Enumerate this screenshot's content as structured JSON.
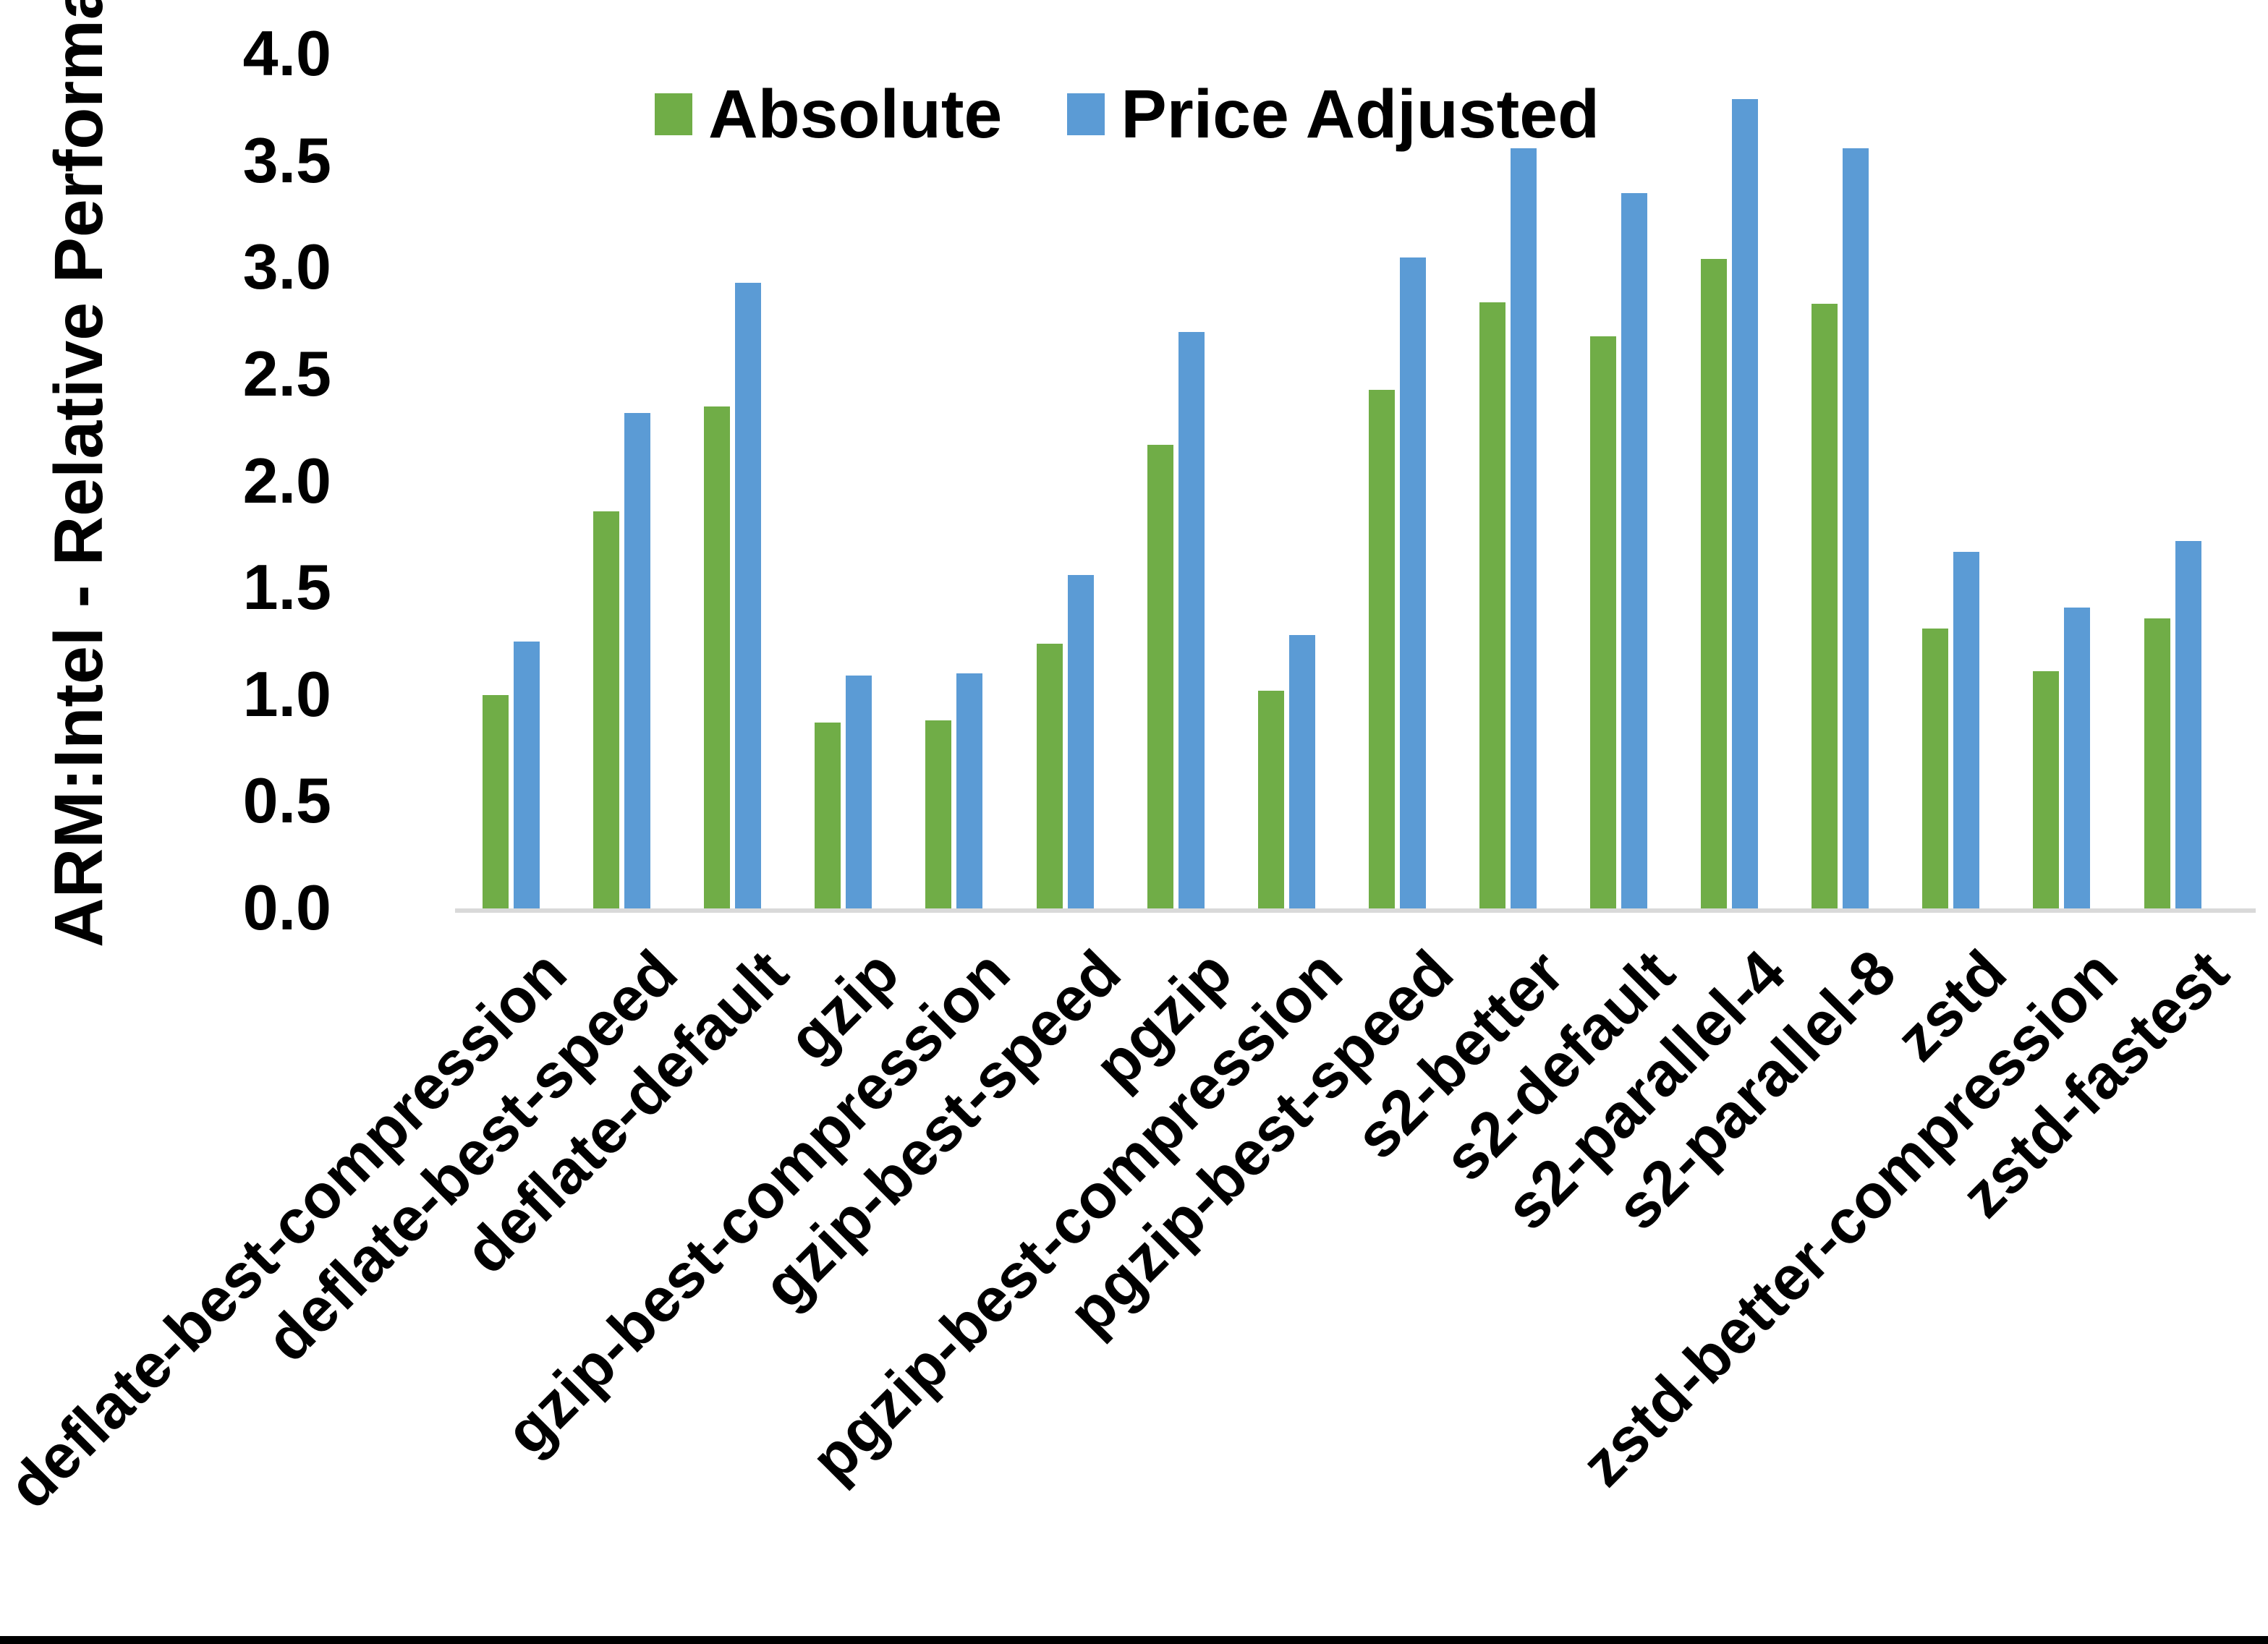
{
  "chart_data": {
    "type": "bar",
    "title": "",
    "ylabel": "ARM:Intel - Relative Performance",
    "xlabel": "",
    "ylim": [
      0.0,
      4.0
    ],
    "ytick_step": 0.5,
    "yticks": [
      "0.0",
      "0.5",
      "1.0",
      "1.5",
      "2.0",
      "2.5",
      "3.0",
      "3.5",
      "4.0"
    ],
    "grid": false,
    "legend_position": "top-center",
    "categories": [
      "deflate-best-compression",
      "deflate-best-speed",
      "deflate-default",
      "gzip",
      "gzip-best-compression",
      "gzip-best-speed",
      "pgzip",
      "pgzip-best-compression",
      "pgzip-best-speed",
      "s2-better",
      "s2-default",
      "s2-parallel-4",
      "s2-parallel-8",
      "zstd",
      "zstd-better-compression",
      "zstd-fastest"
    ],
    "series": [
      {
        "name": "Absolute",
        "color": "#70AD47",
        "values": [
          1.01,
          1.87,
          2.36,
          0.88,
          0.89,
          1.25,
          2.18,
          1.03,
          2.44,
          2.85,
          2.69,
          3.05,
          2.84,
          1.32,
          1.12,
          1.37
        ]
      },
      {
        "name": "Price Adjusted",
        "color": "#5B9BD5",
        "values": [
          1.26,
          2.33,
          2.94,
          1.1,
          1.11,
          1.57,
          2.71,
          1.29,
          3.06,
          3.57,
          3.36,
          3.8,
          3.57,
          1.68,
          1.42,
          1.73
        ]
      }
    ]
  },
  "colors": {
    "absolute": "#70AD47",
    "price_adjusted": "#5B9BD5",
    "axis_line": "#d9d9d9",
    "text": "#000000",
    "background": "#ffffff",
    "bottom_border": "#000000"
  }
}
